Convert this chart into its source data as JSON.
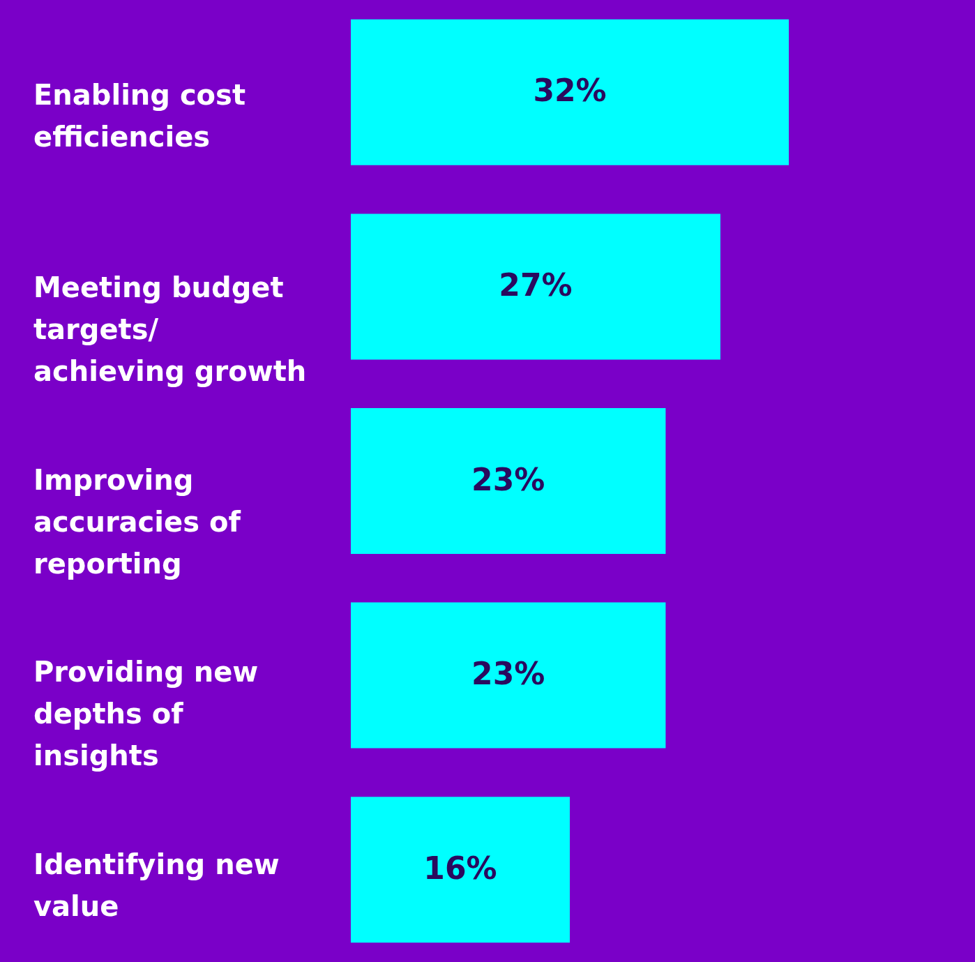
{
  "chart_data": {
    "type": "bar",
    "orientation": "horizontal",
    "categories": [
      "Enabling cost efficiencies",
      "Meeting budget targets/ achieving growth",
      "Improving accuracies of reporting",
      "Providing new depths of insights",
      "Identifying new value"
    ],
    "values": [
      32,
      27,
      23,
      23,
      16
    ],
    "color": "#00ffff",
    "value_labels": [
      "32%",
      "27%",
      "23%",
      "23%",
      "16%"
    ],
    "xlim": [
      0,
      45.6
    ]
  }
}
